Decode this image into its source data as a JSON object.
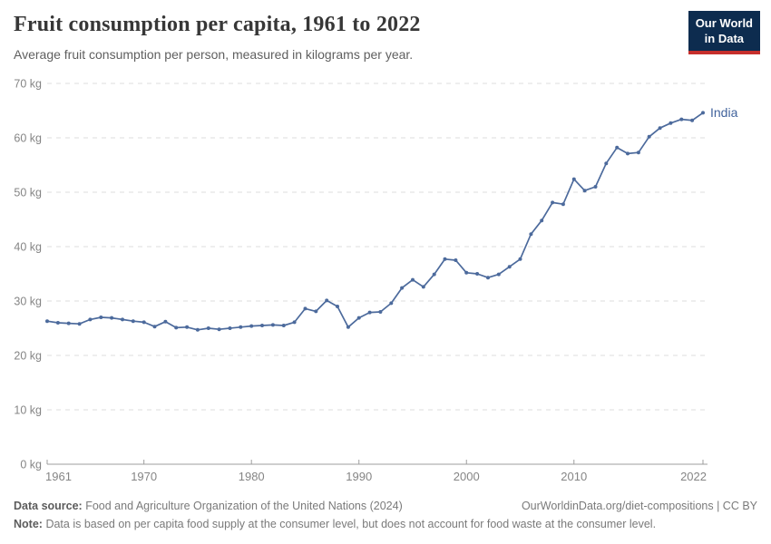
{
  "header": {
    "title": "Fruit consumption per capita, 1961 to 2022",
    "subtitle": "Average fruit consumption per person, measured in kilograms per year.",
    "logo": {
      "line1": "Our World",
      "line2": "in Data"
    }
  },
  "chart_data": {
    "type": "line",
    "title": "Fruit consumption per capita, 1961 to 2022",
    "xlabel": "",
    "ylabel": "",
    "xlim": [
      1961,
      2022
    ],
    "ylim": [
      0,
      70
    ],
    "x_ticks": [
      1961,
      1970,
      1980,
      1990,
      2000,
      2010,
      2022
    ],
    "y_ticks": [
      0,
      10,
      20,
      30,
      40,
      50,
      60,
      70
    ],
    "y_tick_suffix": " kg",
    "grid": "horizontal-dashed",
    "legend_position": "end-of-line-label",
    "x": [
      1961,
      1962,
      1963,
      1964,
      1965,
      1966,
      1967,
      1968,
      1969,
      1970,
      1971,
      1972,
      1973,
      1974,
      1975,
      1976,
      1977,
      1978,
      1979,
      1980,
      1981,
      1982,
      1983,
      1984,
      1985,
      1986,
      1987,
      1988,
      1989,
      1990,
      1991,
      1992,
      1993,
      1994,
      1995,
      1996,
      1997,
      1998,
      1999,
      2000,
      2001,
      2002,
      2003,
      2004,
      2005,
      2006,
      2007,
      2008,
      2009,
      2010,
      2011,
      2012,
      2013,
      2014,
      2015,
      2016,
      2017,
      2018,
      2019,
      2020,
      2021,
      2022
    ],
    "series": [
      {
        "name": "India",
        "end_label": "India",
        "values": [
          26.3,
          26.0,
          25.9,
          25.8,
          26.6,
          27.0,
          26.9,
          26.6,
          26.3,
          26.1,
          25.3,
          26.2,
          25.1,
          25.2,
          24.7,
          25.0,
          24.8,
          25.0,
          25.2,
          25.4,
          25.5,
          25.6,
          25.5,
          26.1,
          28.6,
          28.1,
          30.1,
          29.0,
          25.2,
          26.9,
          27.9,
          28.0,
          29.6,
          32.4,
          33.9,
          32.6,
          34.9,
          37.7,
          37.5,
          35.2,
          35.0,
          34.3,
          34.9,
          36.3,
          37.7,
          42.3,
          44.8,
          48.1,
          47.8,
          52.4,
          50.3,
          51.0,
          55.3,
          58.2,
          57.1,
          57.3,
          60.2,
          61.8,
          62.7,
          63.4,
          63.2,
          64.6
        ]
      }
    ]
  },
  "footer": {
    "source_label": "Data source:",
    "source_text": "Food and Agriculture Organization of the United Nations (2024)",
    "link_text": "OurWorldinData.org/diet-compositions | CC BY",
    "note_label": "Note:",
    "note_text": "Data is based on per capita food supply at the consumer level, but does not account for food waste at the consumer level."
  },
  "colors": {
    "line": "#4C6A9C",
    "end_label": "#41639c",
    "grid": "#dedede",
    "axis": "#9e9e9e",
    "tick_text": "#858585",
    "logo_bg": "#0d2c4f",
    "logo_red": "#c62f2c"
  }
}
